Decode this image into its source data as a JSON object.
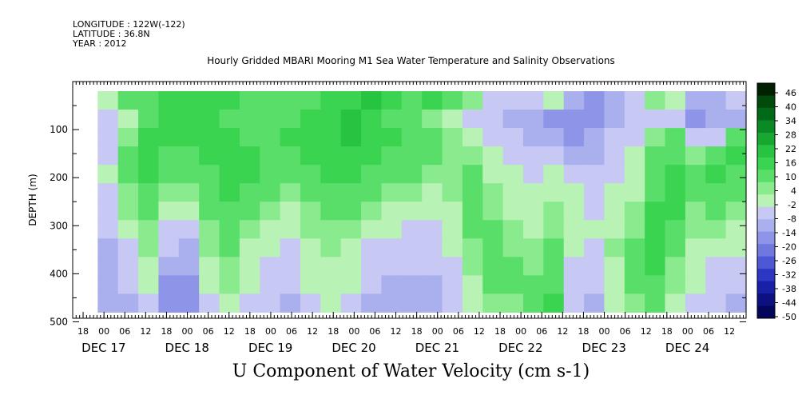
{
  "header": {
    "longitude": "LONGITUDE : 122W(-122)",
    "latitude": "LATITUDE : 36.8N",
    "year": "YEAR : 2012"
  },
  "chart_data": {
    "type": "heatmap",
    "title": "Hourly Gridded MBARI Mooring M1 Sea Water Temperature and Salinity Observations",
    "xlabel": "U Component of Water Velocity (cm s-1)",
    "ylabel": "DEPTH (m)",
    "y_ticks": [
      100,
      200,
      300,
      400,
      500
    ],
    "y_range": [
      0,
      500
    ],
    "y_inverted": true,
    "hour_ticks": [
      "18",
      "00",
      "06",
      "12",
      "18",
      "00",
      "06",
      "12",
      "18",
      "00",
      "06",
      "12",
      "18",
      "00",
      "06",
      "12",
      "18",
      "00",
      "06",
      "12",
      "18",
      "00",
      "06",
      "12",
      "18",
      "00",
      "06",
      "12",
      "18",
      "00",
      "06",
      "12"
    ],
    "day_labels": [
      "DEC 17",
      "DEC 18",
      "DEC 19",
      "DEC 20",
      "DEC 21",
      "DEC 22",
      "DEC 23",
      "DEC 24"
    ],
    "colorbar": {
      "ticks": [
        "46",
        "40",
        "34",
        "28",
        "22",
        "16",
        "10",
        "4",
        "-2",
        "-8",
        "-14",
        "-20",
        "-26",
        "-32",
        "-38",
        "-44",
        "-50"
      ],
      "colors": [
        "#002000",
        "#004a0c",
        "#006a18",
        "#0a8a24",
        "#18a832",
        "#26c440",
        "#3ad450",
        "#5ade6a",
        "#8aea8e",
        "#b8f2b4",
        "#c8c8f4",
        "#aab0ee",
        "#8e94e8",
        "#7078e0",
        "#4e58d4",
        "#2c38c4",
        "#1820a8",
        "#0c1080",
        "#04065c"
      ]
    },
    "depth_coverage_m": [
      20,
      480
    ],
    "values_cm_s": [
      [
        -4,
        6,
        10,
        12,
        14,
        16,
        12,
        10,
        8,
        6,
        10,
        14,
        16,
        18,
        14,
        10,
        12,
        6,
        2,
        -6,
        -10,
        -8,
        -4,
        -12,
        -16,
        -12,
        -8,
        4,
        -2,
        -12,
        -14,
        -8
      ],
      [
        -10,
        -4,
        10,
        12,
        16,
        12,
        10,
        8,
        6,
        10,
        14,
        16,
        18,
        14,
        10,
        8,
        4,
        -2,
        -6,
        -10,
        -14,
        -12,
        -16,
        -16,
        -18,
        -14,
        -10,
        -6,
        -10,
        -16,
        -14,
        -12
      ],
      [
        -8,
        2,
        12,
        14,
        14,
        16,
        14,
        10,
        8,
        12,
        14,
        16,
        20,
        16,
        12,
        10,
        8,
        2,
        -4,
        -8,
        -10,
        -12,
        -14,
        -18,
        -14,
        -10,
        -6,
        4,
        8,
        -6,
        -8,
        6
      ],
      [
        -6,
        6,
        14,
        10,
        10,
        14,
        16,
        12,
        10,
        10,
        12,
        14,
        16,
        14,
        10,
        8,
        6,
        4,
        2,
        -4,
        -6,
        -8,
        -10,
        -14,
        -12,
        -8,
        -4,
        6,
        10,
        4,
        10,
        12
      ],
      [
        -4,
        8,
        12,
        8,
        6,
        10,
        14,
        12,
        8,
        6,
        10,
        12,
        12,
        10,
        8,
        6,
        2,
        4,
        8,
        -2,
        -4,
        -6,
        -2,
        -8,
        -10,
        -6,
        -2,
        8,
        12,
        8,
        12,
        10
      ],
      [
        -6,
        4,
        10,
        4,
        2,
        8,
        12,
        10,
        6,
        4,
        8,
        10,
        10,
        6,
        4,
        2,
        -2,
        2,
        10,
        2,
        -2,
        -4,
        0,
        -4,
        -8,
        -4,
        0,
        10,
        14,
        6,
        10,
        8
      ],
      [
        -8,
        2,
        6,
        -2,
        -4,
        6,
        10,
        6,
        2,
        0,
        4,
        6,
        6,
        2,
        0,
        -2,
        -4,
        0,
        8,
        4,
        0,
        -2,
        2,
        -2,
        -6,
        -2,
        2,
        12,
        14,
        4,
        6,
        4
      ],
      [
        -10,
        -2,
        4,
        -6,
        -8,
        4,
        8,
        2,
        -2,
        -4,
        2,
        4,
        2,
        -2,
        -4,
        -6,
        -6,
        -2,
        6,
        6,
        2,
        0,
        4,
        -2,
        -4,
        0,
        4,
        14,
        10,
        2,
        2,
        0
      ],
      [
        -12,
        -6,
        2,
        -10,
        -12,
        2,
        6,
        0,
        -4,
        -6,
        0,
        2,
        0,
        -6,
        -8,
        -8,
        -8,
        -4,
        4,
        8,
        4,
        2,
        6,
        -4,
        -6,
        2,
        6,
        16,
        6,
        0,
        -2,
        -4
      ],
      [
        -12,
        -8,
        0,
        -14,
        -14,
        0,
        4,
        -2,
        -6,
        -8,
        -2,
        0,
        -2,
        -8,
        -10,
        -10,
        -10,
        -6,
        2,
        8,
        6,
        4,
        8,
        -6,
        -8,
        0,
        8,
        14,
        4,
        -2,
        -6,
        -8
      ],
      [
        -14,
        -10,
        -4,
        -16,
        -16,
        -4,
        2,
        -4,
        -8,
        -10,
        -4,
        -2,
        -4,
        -10,
        -12,
        -12,
        -12,
        -8,
        0,
        6,
        6,
        6,
        10,
        -8,
        -10,
        -2,
        6,
        10,
        2,
        -4,
        -8,
        -10
      ],
      [
        -14,
        -12,
        -8,
        -18,
        -18,
        -6,
        0,
        -6,
        -10,
        -12,
        -6,
        -4,
        -6,
        -12,
        -14,
        -14,
        -12,
        -10,
        -2,
        4,
        4,
        8,
        12,
        -10,
        -12,
        -4,
        4,
        6,
        0,
        -6,
        -10,
        -12
      ]
    ]
  }
}
